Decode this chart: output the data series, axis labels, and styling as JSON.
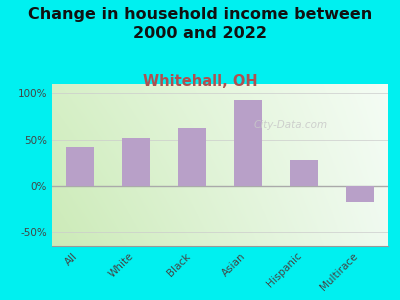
{
  "title": "Change in household income between\n2000 and 2022",
  "subtitle": "Whitehall, OH",
  "categories": [
    "All",
    "White",
    "Black",
    "Asian",
    "Hispanic",
    "Multirace"
  ],
  "values": [
    42,
    52,
    63,
    93,
    28,
    -18
  ],
  "bar_color": "#b8a0c8",
  "title_fontsize": 11.5,
  "subtitle_fontsize": 10.5,
  "subtitle_color": "#b05050",
  "bg_outer": "#00f0f0",
  "ylim": [
    -65,
    110
  ],
  "yticks": [
    -50,
    0,
    50,
    100
  ],
  "ytick_labels": [
    "-50%",
    "0%",
    "50%",
    "100%"
  ],
  "watermark": "City-Data.com",
  "watermark_color": "#c8c8c8"
}
